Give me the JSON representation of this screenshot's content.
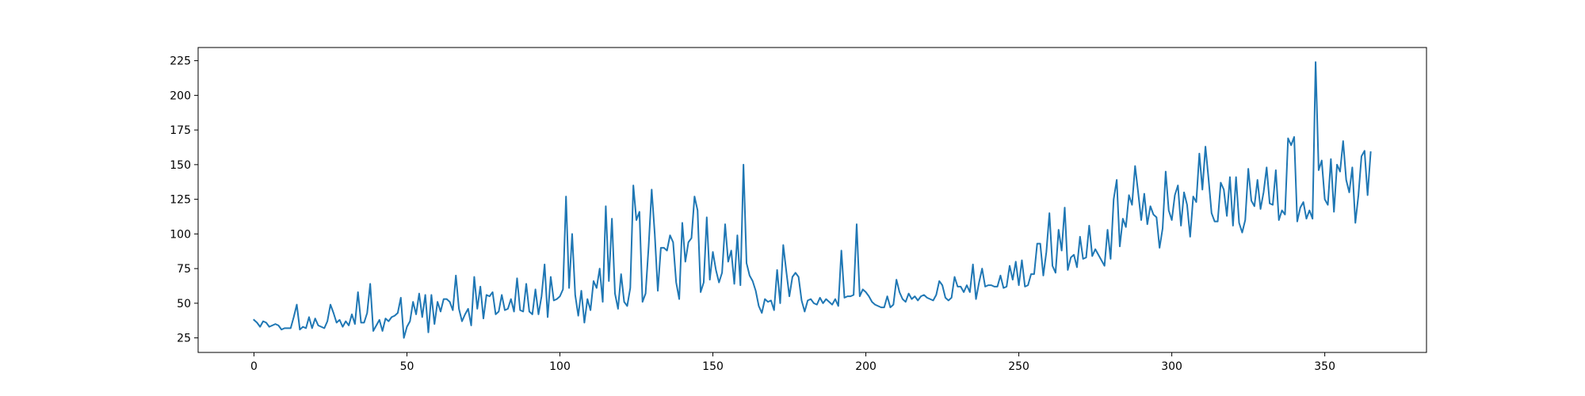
{
  "chart_data": {
    "type": "line",
    "title": "",
    "xlabel": "",
    "ylabel": "",
    "xlim": [
      -18.25,
      383.25
    ],
    "ylim": [
      14.5,
      234.5
    ],
    "x_ticks": [
      0,
      50,
      100,
      150,
      200,
      250,
      300,
      350
    ],
    "y_ticks": [
      25,
      50,
      75,
      100,
      125,
      150,
      175,
      200,
      225
    ],
    "grid": false,
    "legend": "none",
    "series": [
      {
        "color": "#1f77b4",
        "x_start": 0,
        "x_step": 1,
        "values": [
          38,
          36,
          33,
          37,
          36,
          33,
          34,
          35,
          34,
          31,
          32,
          32,
          32,
          40,
          49,
          31,
          33,
          32,
          40,
          32,
          39,
          34,
          33,
          32,
          37,
          49,
          43,
          36,
          38,
          33,
          37,
          34,
          42,
          35,
          58,
          36,
          36,
          43,
          64,
          30,
          34,
          38,
          30,
          39,
          37,
          40,
          41,
          43,
          54,
          25,
          33,
          37,
          51,
          42,
          57,
          40,
          56,
          29,
          56,
          35,
          51,
          44,
          53,
          53,
          51,
          45,
          70,
          46,
          37,
          42,
          46,
          34,
          69,
          46,
          62,
          39,
          56,
          55,
          58,
          42,
          44,
          56,
          45,
          46,
          53,
          44,
          68,
          45,
          44,
          64,
          44,
          42,
          60,
          42,
          55,
          78,
          40,
          69,
          52,
          53,
          55,
          60,
          127,
          61,
          100,
          56,
          41,
          59,
          36,
          53,
          45,
          66,
          61,
          75,
          51,
          120,
          66,
          111,
          57,
          46,
          71,
          51,
          48,
          61,
          135,
          110,
          116,
          51,
          57,
          91,
          132,
          100,
          59,
          90,
          90,
          88,
          99,
          94,
          65,
          53,
          108,
          80,
          94,
          97,
          127,
          117,
          58,
          65,
          112,
          67,
          87,
          74,
          65,
          72,
          107,
          80,
          88,
          64,
          99,
          63,
          150,
          79,
          70,
          66,
          59,
          48,
          43,
          53,
          51,
          52,
          45,
          74,
          50,
          92,
          73,
          55,
          69,
          72,
          69,
          52,
          44,
          52,
          53,
          50,
          49,
          54,
          50,
          53,
          51,
          49,
          53,
          48,
          88,
          54,
          55,
          55,
          56,
          107,
          55,
          60,
          58,
          55,
          51,
          49,
          48,
          47,
          47,
          55,
          47,
          49,
          67,
          58,
          53,
          51,
          57,
          53,
          55,
          52,
          55,
          56,
          54,
          53,
          52,
          56,
          66,
          63,
          54,
          52,
          54,
          69,
          62,
          62,
          58,
          63,
          58,
          78,
          53,
          65,
          75,
          62,
          63,
          63,
          62,
          62,
          70,
          61,
          62,
          77,
          67,
          80,
          63,
          81,
          62,
          63,
          71,
          71,
          93,
          93,
          70,
          87,
          115,
          77,
          72,
          103,
          88,
          119,
          74,
          83,
          85,
          76,
          98,
          82,
          83,
          106,
          84,
          89,
          85,
          81,
          77,
          103,
          82,
          125,
          139,
          91,
          111,
          105,
          128,
          121,
          149,
          130,
          110,
          129,
          107,
          120,
          114,
          112,
          90,
          104,
          145,
          117,
          110,
          128,
          135,
          106,
          130,
          121,
          98,
          127,
          123,
          158,
          132,
          163,
          140,
          115,
          109,
          109,
          137,
          132,
          113,
          141,
          106,
          141,
          108,
          101,
          110,
          147,
          124,
          120,
          139,
          118,
          130,
          148,
          122,
          121,
          146,
          110,
          117,
          114,
          169,
          164,
          170,
          109,
          119,
          123,
          111,
          117,
          111,
          224,
          146,
          153,
          125,
          121,
          154,
          116,
          150,
          145,
          167,
          139,
          130,
          148,
          108,
          128,
          156,
          160,
          128,
          159
        ]
      }
    ]
  }
}
